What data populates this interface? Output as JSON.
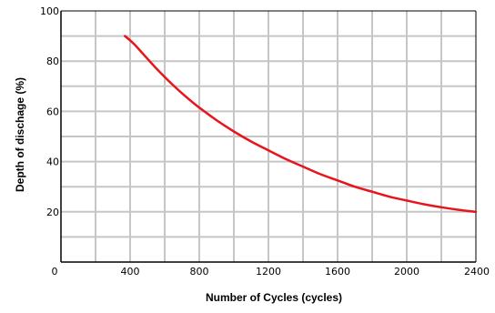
{
  "chart_data": {
    "type": "line",
    "xlabel": "Number of Cycles (cycles)",
    "ylabel": "Depth of dischage (%)",
    "xlim": [
      0,
      2400
    ],
    "ylim": [
      0,
      100
    ],
    "x_ticks": [
      "0",
      "400",
      "800",
      "1200",
      "1600",
      "2000",
      "2400"
    ],
    "y_ticks": [
      "20",
      "40",
      "60",
      "80",
      "100"
    ],
    "grid": true,
    "series": [
      {
        "color": "#e8141b",
        "x": [
          370,
          420,
          480,
          560,
          640,
          720,
          800,
          900,
          1000,
          1100,
          1200,
          1300,
          1400,
          1500,
          1600,
          1700,
          1800,
          1900,
          2000,
          2100,
          2200,
          2300,
          2400
        ],
        "y": [
          90,
          87,
          82.5,
          76.5,
          71,
          66,
          61.5,
          56.5,
          52,
          48,
          44.5,
          41,
          38,
          35,
          32.5,
          30,
          28,
          26,
          24.5,
          23,
          21.8,
          20.8,
          20
        ]
      }
    ]
  }
}
